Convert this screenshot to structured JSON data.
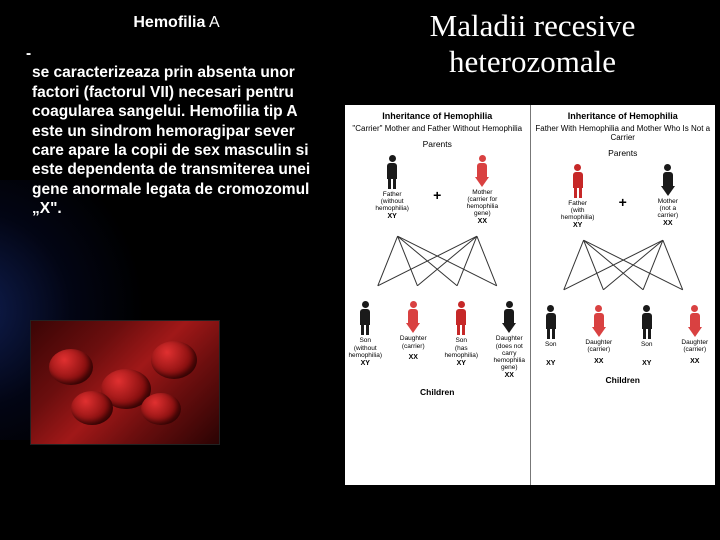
{
  "left": {
    "title_main": "Hemofilia",
    "title_suffix": " A",
    "bullet": "-",
    "body": "se caracterizeaza prin absenta unor factori (factorul VII) necesari pentru coagularea sangelui.   Hemofilia tip A este un sindrom hemoragipar sever care apare la copii de sex masculin si este dependenta de transmiterea unei gene anormale legata de cromozomul „X\"."
  },
  "right": {
    "title_line1": "Maladii recesive",
    "title_line2": "heterozomale"
  },
  "colors": {
    "bg": "#000000",
    "text": "#ffffff",
    "diagram_bg": "#ffffff",
    "male": "#1a1a1a",
    "female_carrier": "#d94141",
    "female_pink": "#e89090",
    "male_affected": "#c62828",
    "line": "#333333"
  },
  "diagram_left": {
    "title": "Inheritance of Hemophilia",
    "subtitle": "\"Carrier\" Mother and Father Without Hemophilia",
    "parents_label": "Parents",
    "father": {
      "label": "Father",
      "sub": "(without hemophilia)",
      "geno": "XY",
      "color": "#1a1a1a"
    },
    "mother": {
      "label": "Mother",
      "sub": "(carrier for hemophilia gene)",
      "geno": "XX",
      "color": "#d94141"
    },
    "children_label": "Children",
    "children": [
      {
        "label": "Son",
        "sub": "(without hemophilia)",
        "geno": "XY",
        "color": "#1a1a1a",
        "type": "male"
      },
      {
        "label": "Daughter",
        "sub": "(carrier)",
        "geno": "XX",
        "color": "#d94141",
        "type": "female"
      },
      {
        "label": "Son",
        "sub": "(has hemophilia)",
        "geno": "XY",
        "color": "#c62828",
        "type": "male"
      },
      {
        "label": "Daughter",
        "sub": "(does not carry hemophilia gene)",
        "geno": "XX",
        "color": "#1a1a1a",
        "type": "female"
      }
    ]
  },
  "diagram_right": {
    "title": "Inheritance of Hemophilia",
    "subtitle": "Father With Hemophilia and Mother Who Is Not a Carrier",
    "parents_label": "Parents",
    "father": {
      "label": "Father",
      "sub": "(with hemophilia)",
      "geno": "XY",
      "color": "#c62828"
    },
    "mother": {
      "label": "Mother",
      "sub": "(not a carrier)",
      "geno": "XX",
      "color": "#1a1a1a"
    },
    "children_label": "Children",
    "children": [
      {
        "label": "Son",
        "sub": "",
        "geno": "XY",
        "color": "#1a1a1a",
        "type": "male"
      },
      {
        "label": "Daughter",
        "sub": "(carrier)",
        "geno": "XX",
        "color": "#d94141",
        "type": "female"
      },
      {
        "label": "Son",
        "sub": "",
        "geno": "XY",
        "color": "#1a1a1a",
        "type": "male"
      },
      {
        "label": "Daughter",
        "sub": "(carrier)",
        "geno": "XX",
        "color": "#d94141",
        "type": "female"
      }
    ]
  }
}
